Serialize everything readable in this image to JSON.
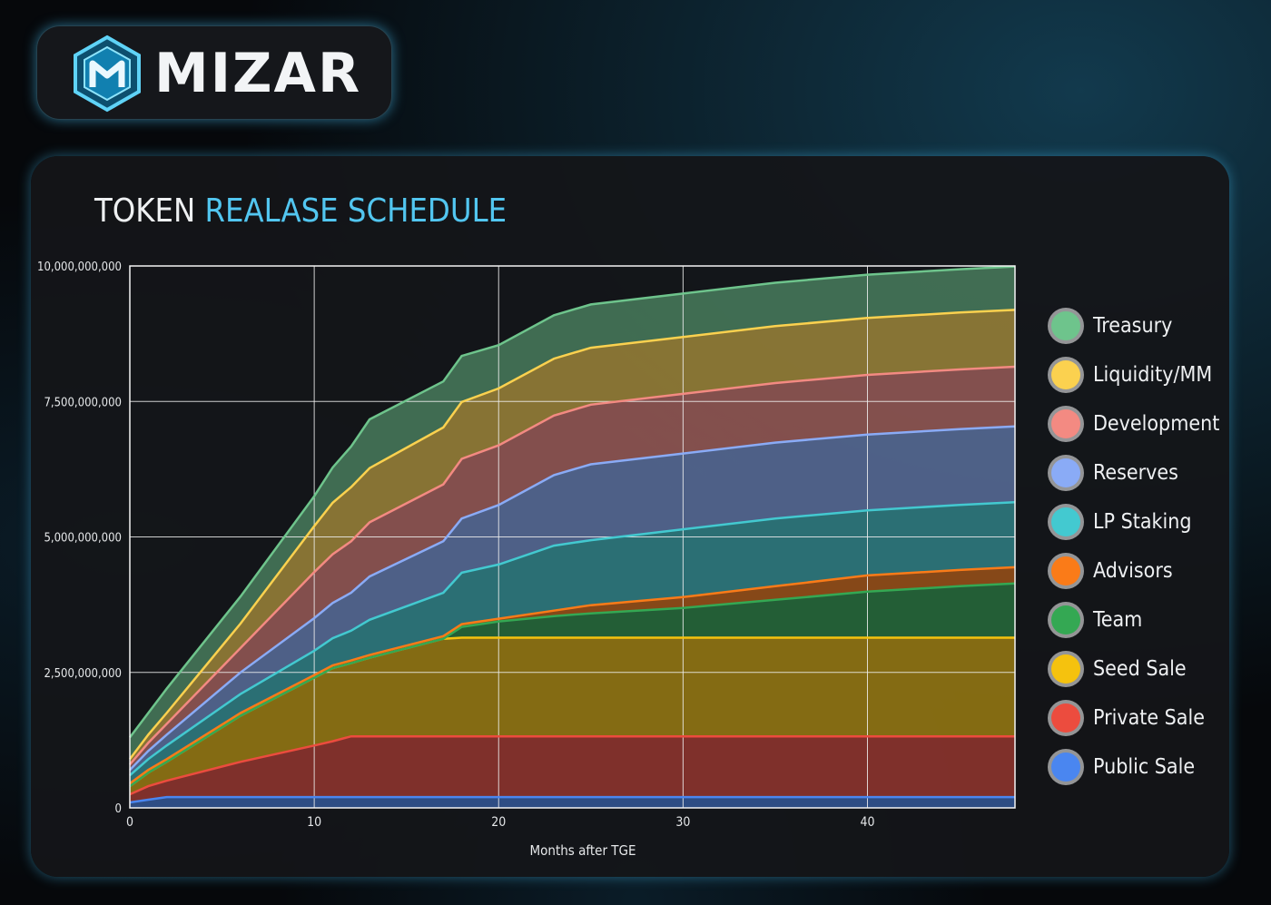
{
  "brand": {
    "name": "MIZAR"
  },
  "title": {
    "part1": "TOKEN",
    "part2": "REALASE SCHEDULE"
  },
  "colors": {
    "accent": "#52c6f0",
    "panel": "#141619",
    "grid": "#e8e8e8"
  },
  "chart_data": {
    "type": "area",
    "stacked": true,
    "xlabel": "Months after TGE",
    "ylabel": "",
    "xlim": [
      0,
      48
    ],
    "ylim": [
      0,
      10000000000
    ],
    "x_ticks": [
      0,
      10,
      20,
      30,
      40
    ],
    "y_tick_labels": [
      "10,000,000,000",
      "7,500,000,000",
      "5,000,000,000",
      "2,500,000,000",
      "0"
    ],
    "grid": true,
    "legend_position": "right",
    "x": [
      0,
      1,
      2,
      6,
      10,
      11,
      12,
      13,
      17,
      18,
      20,
      23,
      25,
      30,
      35,
      40,
      45,
      48
    ],
    "series": [
      {
        "name": "Public Sale",
        "color": "#4a86f0",
        "values": [
          100000000,
          150000000,
          200000000,
          200000000,
          200000000,
          200000000,
          200000000,
          200000000,
          200000000,
          200000000,
          200000000,
          200000000,
          200000000,
          200000000,
          200000000,
          200000000,
          200000000,
          200000000
        ]
      },
      {
        "name": "Private Sale",
        "color": "#ec4c3e",
        "values": [
          150000000,
          250000000,
          300000000,
          650000000,
          950000000,
          1030000000,
          1120000000,
          1120000000,
          1120000000,
          1120000000,
          1120000000,
          1120000000,
          1120000000,
          1120000000,
          1120000000,
          1120000000,
          1120000000,
          1120000000
        ]
      },
      {
        "name": "Seed Sale",
        "color": "#f5c20e",
        "values": [
          150000000,
          250000000,
          350000000,
          850000000,
          1250000000,
          1350000000,
          1350000000,
          1450000000,
          1800000000,
          1820000000,
          1820000000,
          1820000000,
          1820000000,
          1820000000,
          1820000000,
          1820000000,
          1820000000,
          1820000000
        ]
      },
      {
        "name": "Team",
        "color": "#34a853",
        "values": [
          0,
          0,
          0,
          0,
          0,
          0,
          0,
          0,
          0,
          200000000,
          300000000,
          400000000,
          450000000,
          550000000,
          700000000,
          850000000,
          950000000,
          1000000000
        ]
      },
      {
        "name": "Advisors",
        "color": "#fa7b18",
        "values": [
          50000000,
          50000000,
          50000000,
          50000000,
          50000000,
          50000000,
          50000000,
          50000000,
          50000000,
          50000000,
          50000000,
          100000000,
          150000000,
          200000000,
          250000000,
          300000000,
          300000000,
          300000000
        ]
      },
      {
        "name": "LP Staking",
        "color": "#43c9d0",
        "values": [
          150000000,
          200000000,
          250000000,
          350000000,
          450000000,
          500000000,
          550000000,
          650000000,
          800000000,
          950000000,
          1000000000,
          1200000000,
          1200000000,
          1250000000,
          1250000000,
          1200000000,
          1200000000,
          1200000000
        ]
      },
      {
        "name": "Reserves",
        "color": "#8aabf6",
        "values": [
          100000000,
          150000000,
          200000000,
          400000000,
          600000000,
          650000000,
          700000000,
          800000000,
          950000000,
          1000000000,
          1100000000,
          1300000000,
          1400000000,
          1400000000,
          1400000000,
          1400000000,
          1400000000,
          1400000000
        ]
      },
      {
        "name": "Development",
        "color": "#f38a82",
        "values": [
          100000000,
          150000000,
          200000000,
          450000000,
          850000000,
          900000000,
          950000000,
          1000000000,
          1050000000,
          1100000000,
          1100000000,
          1100000000,
          1100000000,
          1100000000,
          1100000000,
          1100000000,
          1100000000,
          1100000000
        ]
      },
      {
        "name": "Liquidity/MM",
        "color": "#fbd14f",
        "values": [
          100000000,
          150000000,
          200000000,
          450000000,
          850000000,
          950000000,
          1000000000,
          1000000000,
          1050000000,
          1050000000,
          1050000000,
          1050000000,
          1050000000,
          1050000000,
          1050000000,
          1050000000,
          1050000000,
          1050000000
        ]
      },
      {
        "name": "Treasury",
        "color": "#6ec48c",
        "values": [
          400000000,
          400000000,
          450000000,
          500000000,
          550000000,
          650000000,
          750000000,
          900000000,
          850000000,
          850000000,
          800000000,
          800000000,
          800000000,
          800000000,
          800000000,
          800000000,
          800000000,
          800000000
        ]
      }
    ]
  }
}
